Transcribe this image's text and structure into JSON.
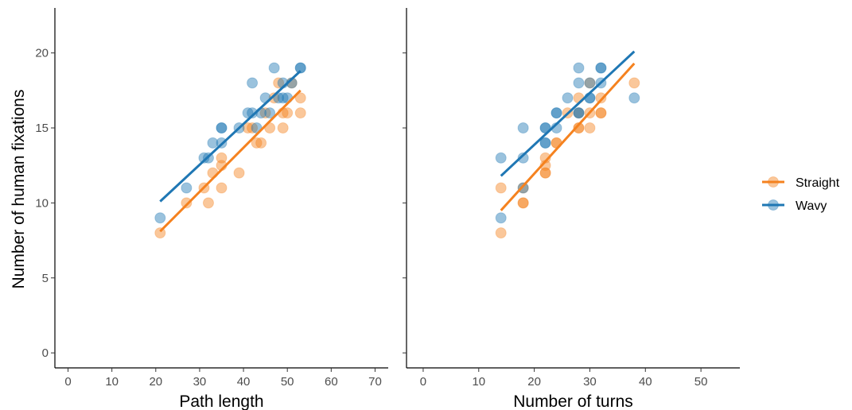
{
  "chart_data": {
    "type": "scatter",
    "ylabel": "Number of human fixations",
    "ylim": [
      -1,
      23
    ],
    "yticks": [
      0,
      5,
      10,
      15,
      20
    ],
    "grid": false,
    "legend": {
      "placement": "right",
      "entries": [
        {
          "name": "Straight",
          "color": "#f5821f"
        },
        {
          "name": "Wavy",
          "color": "#1f77b4"
        }
      ]
    },
    "panels": [
      {
        "xlabel": "Path length",
        "xlim": [
          -3,
          73
        ],
        "xticks": [
          0,
          10,
          20,
          30,
          40,
          50,
          60,
          70
        ],
        "series": [
          {
            "name": "Straight",
            "color": "#f5821f",
            "points": [
              [
                21,
                8
              ],
              [
                27,
                10
              ],
              [
                31,
                11
              ],
              [
                32,
                10
              ],
              [
                33,
                12
              ],
              [
                35,
                11
              ],
              [
                35,
                12.5
              ],
              [
                35,
                13
              ],
              [
                39,
                12
              ],
              [
                41,
                15
              ],
              [
                42,
                15
              ],
              [
                43,
                14
              ],
              [
                44,
                14
              ],
              [
                45,
                16
              ],
              [
                46,
                15
              ],
              [
                47,
                17
              ],
              [
                48,
                18
              ],
              [
                49,
                15
              ],
              [
                49,
                16
              ],
              [
                50,
                16
              ],
              [
                51,
                18
              ],
              [
                53,
                16
              ],
              [
                53,
                17
              ]
            ],
            "fit": [
              [
                21,
                8.1
              ],
              [
                53,
                17.5
              ]
            ]
          },
          {
            "name": "Wavy",
            "color": "#1f77b4",
            "points": [
              [
                21,
                9
              ],
              [
                27,
                11
              ],
              [
                31,
                13
              ],
              [
                32,
                13
              ],
              [
                33,
                14
              ],
              [
                35,
                14
              ],
              [
                35,
                15
              ],
              [
                35,
                15
              ],
              [
                39,
                15
              ],
              [
                41,
                16
              ],
              [
                42,
                16
              ],
              [
                42,
                18
              ],
              [
                43,
                15
              ],
              [
                44,
                16
              ],
              [
                45,
                17
              ],
              [
                46,
                16
              ],
              [
                47,
                19
              ],
              [
                48,
                17
              ],
              [
                49,
                17
              ],
              [
                49,
                18
              ],
              [
                50,
                17
              ],
              [
                51,
                18
              ],
              [
                53,
                19
              ],
              [
                53,
                19
              ]
            ],
            "fit": [
              [
                21,
                10.1
              ],
              [
                53,
                18.8
              ]
            ]
          }
        ]
      },
      {
        "xlabel": "Number of turns",
        "xlim": [
          -3,
          57
        ],
        "xticks": [
          0,
          10,
          20,
          30,
          40,
          50
        ],
        "series": [
          {
            "name": "Straight",
            "color": "#f5821f",
            "points": [
              [
                14,
                8
              ],
              [
                14,
                11
              ],
              [
                18,
                10
              ],
              [
                18,
                10
              ],
              [
                18,
                11
              ],
              [
                22,
                12
              ],
              [
                22,
                12
              ],
              [
                22,
                12.5
              ],
              [
                22,
                13
              ],
              [
                24,
                14
              ],
              [
                24,
                14
              ],
              [
                26,
                16
              ],
              [
                28,
                15
              ],
              [
                28,
                15
              ],
              [
                28,
                16
              ],
              [
                28,
                17
              ],
              [
                30,
                15
              ],
              [
                30,
                16
              ],
              [
                30,
                18
              ],
              [
                32,
                16
              ],
              [
                32,
                16
              ],
              [
                32,
                17
              ],
              [
                38,
                18
              ]
            ],
            "fit": [
              [
                14,
                9.5
              ],
              [
                38,
                19.3
              ]
            ]
          },
          {
            "name": "Wavy",
            "color": "#1f77b4",
            "points": [
              [
                14,
                9
              ],
              [
                14,
                13
              ],
              [
                18,
                11
              ],
              [
                18,
                13
              ],
              [
                18,
                15
              ],
              [
                22,
                14
              ],
              [
                22,
                14
              ],
              [
                22,
                15
              ],
              [
                22,
                15
              ],
              [
                24,
                15
              ],
              [
                24,
                16
              ],
              [
                24,
                16
              ],
              [
                26,
                17
              ],
              [
                28,
                16
              ],
              [
                28,
                16
              ],
              [
                28,
                18
              ],
              [
                28,
                19
              ],
              [
                30,
                17
              ],
              [
                30,
                17
              ],
              [
                30,
                18
              ],
              [
                32,
                18
              ],
              [
                32,
                19
              ],
              [
                32,
                19
              ],
              [
                38,
                17
              ]
            ],
            "fit": [
              [
                14,
                11.8
              ],
              [
                38,
                20.1
              ]
            ]
          }
        ]
      }
    ]
  }
}
